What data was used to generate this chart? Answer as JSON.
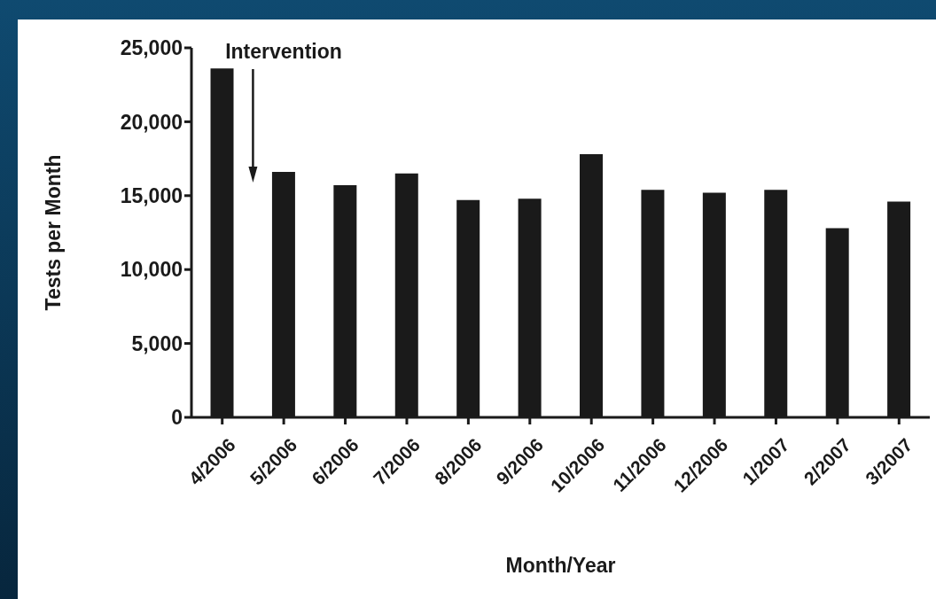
{
  "chart_data": {
    "type": "bar",
    "xlabel": "Month/Year",
    "ylabel": "Tests per Month",
    "categories": [
      "4/2006",
      "5/2006",
      "6/2006",
      "7/2006",
      "8/2006",
      "9/2006",
      "10/2006",
      "11/2006",
      "12/2006",
      "1/2007",
      "2/2007",
      "3/2007"
    ],
    "values": [
      23600,
      16600,
      15700,
      16500,
      14700,
      14800,
      17800,
      15400,
      15200,
      15400,
      12800,
      14600
    ],
    "color": "#1a1a1a",
    "ylim": [
      0,
      25000
    ],
    "yticks": [
      {
        "value": 0,
        "label": "0"
      },
      {
        "value": 5000,
        "label": "5,000"
      },
      {
        "value": 10000,
        "label": "10,000"
      },
      {
        "value": 15000,
        "label": "15,000"
      },
      {
        "value": 20000,
        "label": "20,000"
      },
      {
        "value": 25000,
        "label": "25,000"
      }
    ],
    "annotations": [
      "Intervention"
    ],
    "grid": false,
    "legend": false
  }
}
